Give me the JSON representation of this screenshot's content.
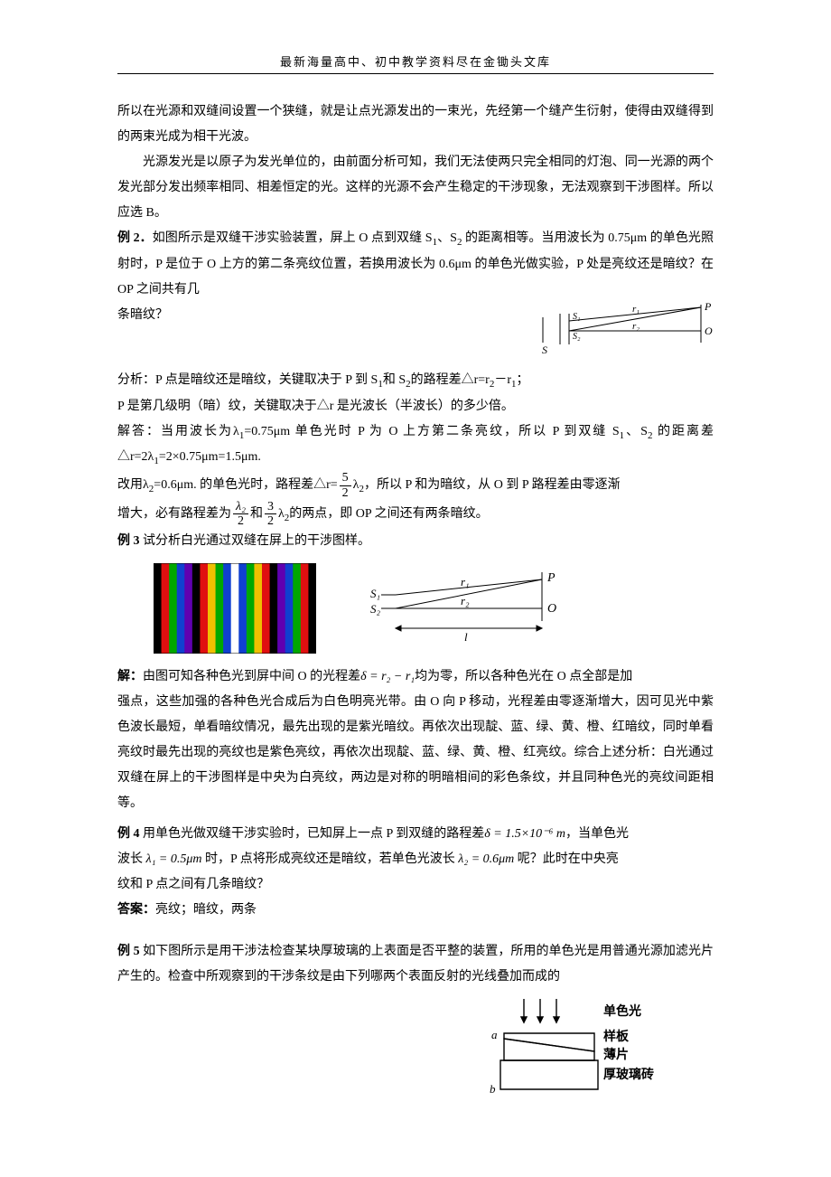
{
  "header": "最新海量高中、初中教学资料尽在金锄头文库",
  "p1": "所以在光源和双缝间设置一个狭缝，就是让点光源发出的一束光，先经第一个缝产生衍射，使得由双缝得到的两束光成为相干光波。",
  "p2": "光源发光是以原子为发光单位的，由前面分析可知，我们无法使两只完全相同的灯泡、同一光源的两个发光部分发出频率相同、相差恒定的光。这样的光源不会产生稳定的干涉现象，无法观察到干涉图样。所以应选 B。",
  "ex2_head": "例 2．",
  "ex2_body1": "如图所示是双缝干涉实验装置，屏上 O 点到双缝 S",
  "ex2_body2": "、S",
  "ex2_body3": " 的距离相等。当用波长为 0.75μm 的单色光照射时，P 是位于 O 上方的第二条亮纹位置，若换用波长为 0.6μm 的单色光做实验，P 处是亮纹还是暗纹？在 OP 之间共有几",
  "ex2_body4": "条暗纹？",
  "analysis_label": "分析：",
  "analysis1": "P 点是暗纹还是暗纹，关键取决于 P 到 S",
  "analysis1b": "和 S",
  "analysis1c": "的路程差△r=r",
  "analysis1d": "－r",
  "analysis1e": "；",
  "analysis2": "P 是第几级明（暗）纹，关键取决于△r 是光波长（半波长）的多少倍。",
  "solve_label": "解答：",
  "solve1": "当用波长为λ",
  "solve1b": "=0.75μm 单色光时 P 为 O 上方第二条亮纹，所以 P 到双缝 S",
  "solve1c": "、S",
  "solve1d": " 的距离差△r=2λ",
  "solve1e": "=2×0.75μm=1.5μm.",
  "solve2a": "改用λ",
  "solve2b": "=0.6μm. 的单色光时，路程差△r=",
  "solve2c": "λ",
  "solve2d": "，所以 P 和为暗纹，从 O 到 P 路程差由零逐渐",
  "solve3a": "增大，必有路程差为",
  "solve3b": "和",
  "solve3c": "λ",
  "solve3d": "的两点，即 OP 之间还有两条暗纹。",
  "frac_5": "5",
  "frac_2": "2",
  "frac_3": "3",
  "frac_lambda2": "λ₂",
  "sub1": "1",
  "sub2": "2",
  "ex3_head": "例 3 ",
  "ex3_body": "试分析白光通过双缝在屏上的干涉图样。",
  "ex3_sol_label": "解：",
  "ex3_sol1": "由图可知各种色光到屏中间 O 的光程差",
  "ex3_sol2": "均为零，所以各种色光在 O 点全部是加",
  "ex3_sol3": "强点，这些加强的各种色光合成后为白色明亮光带。由 O 向 P 移动，光程差由零逐渐增大，因可见光中紫色波长最短，单看暗纹情况，最先出现的是紫光暗纹。再依次出现靛、蓝、绿、黄、橙、红暗纹，同时单看亮纹时最先出现的亮纹也是紫色亮纹，再依次出现靛、蓝、绿、黄、橙、红亮纹。综合上述分析：白光通过双缝在屏上的干涉图样是中央为白亮纹，两边是对称的明暗相间的彩色条纹，并且同种色光的亮纹间距相等。",
  "delta_eq": "δ = r₂ − r₁",
  "ex4_head": "例 4 ",
  "ex4_body1": "用单色光做双缝干涉实验时，已知屏上一点 P 到双缝的路程差",
  "ex4_body1b": "，当单色光",
  "ex4_delta": "δ = 1.5×10⁻⁶ m",
  "ex4_body2a": "波长",
  "ex4_body2b": "时，P 点将形成亮纹还是暗纹，若单色光波长",
  "ex4_body2c": "呢？此时在中央亮",
  "ex4_lambda1": "λ₁ = 0.5μm",
  "ex4_lambda2": "λ₂ = 0.6μm",
  "ex4_body3": "纹和 P 点之间有几条暗纹？",
  "ex4_ans_label": "答案：",
  "ex4_ans": "亮纹；暗纹，两条",
  "ex5_head": "例 5 ",
  "ex5_body": "如下图所示是用干涉法检查某块厚玻璃的上表面是否平整的装置，所用的单色光是用普通光源加滤光片产生的。检查中所观察到的干涉条纹是由下列哪两个表面反射的光线叠加而成的",
  "diagram1": {
    "labels": {
      "S": "S",
      "S1": "S₁",
      "S2": "S₂",
      "P": "P",
      "O": "O",
      "r1": "r₁",
      "r2": "r₂"
    },
    "stroke": "#000000"
  },
  "diagram2": {
    "labels": {
      "S1": "S₁",
      "S2": "S₂",
      "P": "P",
      "O": "O",
      "r1": "r₁",
      "r2": "r₂",
      "l": "l"
    },
    "stroke": "#000000"
  },
  "spectrum": {
    "bands": [
      "#000000",
      "#e01010",
      "#00a800",
      "#1040d0",
      "#6000b0",
      "#000000",
      "#e01010",
      "#f0c000",
      "#00a800",
      "#1040d0",
      "#ffffff",
      "#1040d0",
      "#00a800",
      "#f0c000",
      "#e01010",
      "#000000",
      "#6000b0",
      "#1040d0",
      "#00a800",
      "#e01010",
      "#000000"
    ]
  },
  "diagram4": {
    "labels": {
      "a": "a",
      "b": "b",
      "light": "单色光",
      "plate": "样板",
      "sheet": "薄片",
      "glass": "厚玻璃砖"
    },
    "stroke": "#000000"
  }
}
